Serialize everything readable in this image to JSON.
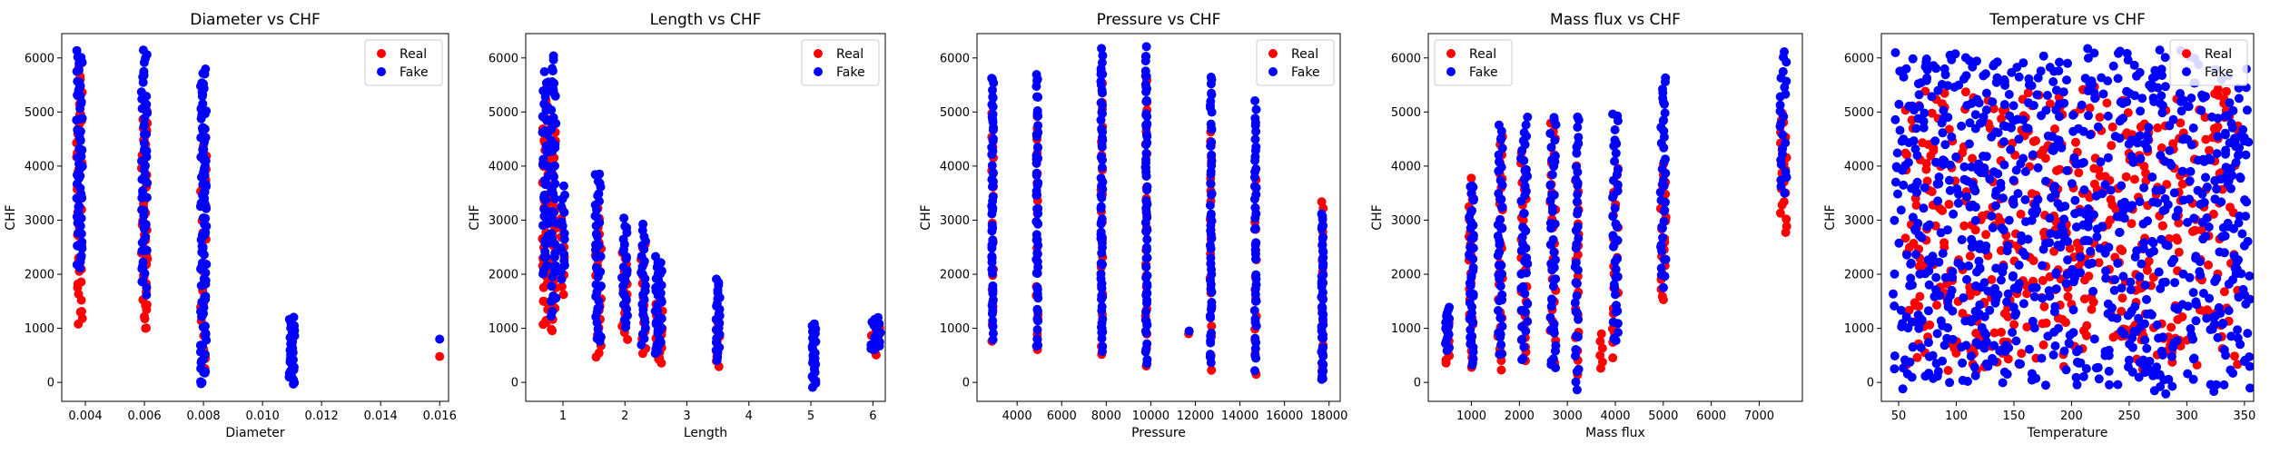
{
  "figure": {
    "real_color": "#ff0000",
    "fake_color": "#0000ff"
  },
  "chart_data": [
    {
      "type": "scatter",
      "title": "Diameter vs CHF",
      "xlabel": "Diameter",
      "ylabel": "CHF",
      "xlim": [
        0.0032,
        0.0163
      ],
      "ylim": [
        -350,
        6450
      ],
      "xticks": [
        0.004,
        0.006,
        0.008,
        0.01,
        0.012,
        0.014,
        0.016
      ],
      "xtick_labels": [
        "0.004",
        "0.006",
        "0.008",
        "0.010",
        "0.012",
        "0.014",
        "0.016"
      ],
      "yticks": [
        0,
        1000,
        2000,
        3000,
        4000,
        5000,
        6000
      ],
      "ytick_labels": [
        "0",
        "1000",
        "2000",
        "3000",
        "4000",
        "5000",
        "6000"
      ],
      "legend": {
        "position": "top-right",
        "entries": [
          "Real",
          "Fake"
        ]
      },
      "series": [
        {
          "name": "Real",
          "color": "#ff0000",
          "clusters": [
            {
              "x": 0.0038,
              "xspread": 0.0001,
              "ymin": 1050,
              "ymax": 5800,
              "n": 45
            },
            {
              "x": 0.006,
              "xspread": 0.0001,
              "ymin": 950,
              "ymax": 5000,
              "n": 45
            },
            {
              "x": 0.008,
              "xspread": 0.0001,
              "ymin": 300,
              "ymax": 4500,
              "n": 25
            },
            {
              "x": 0.016,
              "xspread": 0,
              "ymin": 480,
              "ymax": 480,
              "n": 1
            }
          ]
        },
        {
          "name": "Fake",
          "color": "#0000ff",
          "clusters": [
            {
              "x": 0.0038,
              "xspread": 0.0001,
              "ymin": 2100,
              "ymax": 6100,
              "n": 60
            },
            {
              "x": 0.006,
              "xspread": 0.0001,
              "ymin": 1700,
              "ymax": 6100,
              "n": 60
            },
            {
              "x": 0.008,
              "xspread": 0.0001,
              "ymin": -80,
              "ymax": 5700,
              "n": 110
            },
            {
              "x": 0.011,
              "xspread": 0.0001,
              "ymin": -50,
              "ymax": 1200,
              "n": 30
            },
            {
              "x": 0.016,
              "xspread": 0,
              "ymin": 800,
              "ymax": 800,
              "n": 1
            }
          ]
        }
      ]
    },
    {
      "type": "scatter",
      "title": "Length vs CHF",
      "xlabel": "Length",
      "ylabel": "CHF",
      "xlim": [
        0.4,
        6.2
      ],
      "ylim": [
        -350,
        6450
      ],
      "xticks": [
        1,
        2,
        3,
        4,
        5,
        6
      ],
      "xtick_labels": [
        "1",
        "2",
        "3",
        "4",
        "5",
        "6"
      ],
      "yticks": [
        0,
        1000,
        2000,
        3000,
        4000,
        5000,
        6000
      ],
      "ytick_labels": [
        "0",
        "1000",
        "2000",
        "3000",
        "4000",
        "5000",
        "6000"
      ],
      "legend": {
        "position": "top-right",
        "entries": [
          "Real",
          "Fake"
        ]
      },
      "series": [
        {
          "name": "Real",
          "color": "#ff0000",
          "clusters": [
            {
              "x": 0.72,
              "xspread": 0.05,
              "ymin": 1000,
              "ymax": 5500,
              "n": 40
            },
            {
              "x": 0.85,
              "xspread": 0.04,
              "ymin": 900,
              "ymax": 4800,
              "n": 30
            },
            {
              "x": 1.0,
              "xspread": 0.03,
              "ymin": 1600,
              "ymax": 3200,
              "n": 10
            },
            {
              "x": 1.57,
              "xspread": 0.05,
              "ymin": 420,
              "ymax": 3200,
              "n": 25
            },
            {
              "x": 2.0,
              "xspread": 0.05,
              "ymin": 800,
              "ymax": 2400,
              "n": 15
            },
            {
              "x": 2.3,
              "xspread": 0.04,
              "ymin": 500,
              "ymax": 2600,
              "n": 15
            },
            {
              "x": 2.55,
              "xspread": 0.06,
              "ymin": 350,
              "ymax": 1500,
              "n": 20
            },
            {
              "x": 3.5,
              "xspread": 0.03,
              "ymin": 300,
              "ymax": 1100,
              "n": 10
            },
            {
              "x": 6.05,
              "xspread": 0.08,
              "ymin": 500,
              "ymax": 1000,
              "n": 8
            }
          ]
        },
        {
          "name": "Fake",
          "color": "#0000ff",
          "clusters": [
            {
              "x": 0.72,
              "xspread": 0.05,
              "ymin": 2000,
              "ymax": 5700,
              "n": 45
            },
            {
              "x": 0.85,
              "xspread": 0.04,
              "ymin": 1200,
              "ymax": 6100,
              "n": 45
            },
            {
              "x": 1.0,
              "xspread": 0.03,
              "ymin": 1900,
              "ymax": 3600,
              "n": 15
            },
            {
              "x": 1.57,
              "xspread": 0.05,
              "ymin": 700,
              "ymax": 3900,
              "n": 40
            },
            {
              "x": 2.0,
              "xspread": 0.05,
              "ymin": 1000,
              "ymax": 3000,
              "n": 25
            },
            {
              "x": 2.3,
              "xspread": 0.04,
              "ymin": 700,
              "ymax": 2900,
              "n": 25
            },
            {
              "x": 2.55,
              "xspread": 0.06,
              "ymin": 500,
              "ymax": 2300,
              "n": 35
            },
            {
              "x": 3.5,
              "xspread": 0.03,
              "ymin": 400,
              "ymax": 1900,
              "n": 25
            },
            {
              "x": 5.05,
              "xspread": 0.03,
              "ymin": -80,
              "ymax": 1100,
              "n": 25
            },
            {
              "x": 6.05,
              "xspread": 0.08,
              "ymin": 600,
              "ymax": 1200,
              "n": 20
            }
          ]
        }
      ]
    },
    {
      "type": "scatter",
      "title": "Pressure vs CHF",
      "xlabel": "Pressure",
      "ylabel": "CHF",
      "xlim": [
        2200,
        18500
      ],
      "ylim": [
        -350,
        6450
      ],
      "xticks": [
        4000,
        6000,
        8000,
        10000,
        12000,
        14000,
        16000,
        18000
      ],
      "xtick_labels": [
        "4000",
        "6000",
        "8000",
        "10000",
        "12000",
        "14000",
        "16000",
        "18000"
      ],
      "yticks": [
        0,
        1000,
        2000,
        3000,
        4000,
        5000,
        6000
      ],
      "ytick_labels": [
        "0",
        "1000",
        "2000",
        "3000",
        "4000",
        "5000",
        "6000"
      ],
      "legend": {
        "position": "top-right",
        "entries": [
          "Real",
          "Fake"
        ]
      },
      "series": [
        {
          "name": "Real",
          "color": "#ff0000",
          "clusters": [
            {
              "x": 2900,
              "xspread": 40,
              "ymin": 800,
              "ymax": 5000,
              "n": 20
            },
            {
              "x": 4900,
              "xspread": 40,
              "ymin": 650,
              "ymax": 5000,
              "n": 20
            },
            {
              "x": 7800,
              "xspread": 40,
              "ymin": 500,
              "ymax": 5500,
              "n": 20
            },
            {
              "x": 9800,
              "xspread": 40,
              "ymin": 350,
              "ymax": 5500,
              "n": 20
            },
            {
              "x": 11700,
              "xspread": 30,
              "ymin": 900,
              "ymax": 950,
              "n": 2
            },
            {
              "x": 12700,
              "xspread": 40,
              "ymin": 300,
              "ymax": 4700,
              "n": 20
            },
            {
              "x": 14700,
              "xspread": 40,
              "ymin": 200,
              "ymax": 3800,
              "n": 15
            },
            {
              "x": 17700,
              "xspread": 40,
              "ymin": 300,
              "ymax": 3400,
              "n": 15
            }
          ]
        },
        {
          "name": "Fake",
          "color": "#0000ff",
          "clusters": [
            {
              "x": 2900,
              "xspread": 40,
              "ymin": 800,
              "ymax": 5700,
              "n": 60
            },
            {
              "x": 4900,
              "xspread": 40,
              "ymin": 650,
              "ymax": 5700,
              "n": 60
            },
            {
              "x": 7800,
              "xspread": 40,
              "ymin": 600,
              "ymax": 6100,
              "n": 70
            },
            {
              "x": 9800,
              "xspread": 40,
              "ymin": 400,
              "ymax": 6100,
              "n": 70
            },
            {
              "x": 11700,
              "xspread": 30,
              "ymin": 950,
              "ymax": 950,
              "n": 1
            },
            {
              "x": 12700,
              "xspread": 40,
              "ymin": 300,
              "ymax": 5700,
              "n": 55
            },
            {
              "x": 14700,
              "xspread": 40,
              "ymin": 300,
              "ymax": 5200,
              "n": 45
            },
            {
              "x": 17700,
              "xspread": 40,
              "ymin": 0,
              "ymax": 3100,
              "n": 50
            }
          ]
        }
      ]
    },
    {
      "type": "scatter",
      "title": "Mass flux vs CHF",
      "xlabel": "Mass flux",
      "ylabel": "CHF",
      "xlim": [
        100,
        7900
      ],
      "ylim": [
        -350,
        6450
      ],
      "xticks": [
        1000,
        2000,
        3000,
        4000,
        5000,
        6000,
        7000
      ],
      "xtick_labels": [
        "1000",
        "2000",
        "3000",
        "4000",
        "5000",
        "6000",
        "7000"
      ],
      "yticks": [
        0,
        1000,
        2000,
        3000,
        4000,
        5000,
        6000
      ],
      "ytick_labels": [
        "0",
        "1000",
        "2000",
        "3000",
        "4000",
        "5000",
        "6000"
      ],
      "legend": {
        "position": "top-left",
        "entries": [
          "Real",
          "Fake"
        ]
      },
      "series": [
        {
          "name": "Real",
          "color": "#ff0000",
          "clusters": [
            {
              "x": 500,
              "xspread": 40,
              "ymin": 350,
              "ymax": 1100,
              "n": 12
            },
            {
              "x": 1000,
              "xspread": 50,
              "ymin": 300,
              "ymax": 3800,
              "n": 25
            },
            {
              "x": 1600,
              "xspread": 50,
              "ymin": 300,
              "ymax": 4600,
              "n": 25
            },
            {
              "x": 2100,
              "xspread": 70,
              "ymin": 400,
              "ymax": 4200,
              "n": 25
            },
            {
              "x": 2700,
              "xspread": 60,
              "ymin": 400,
              "ymax": 4800,
              "n": 25
            },
            {
              "x": 3200,
              "xspread": 40,
              "ymin": 200,
              "ymax": 4000,
              "n": 20
            },
            {
              "x": 3700,
              "xspread": 40,
              "ymin": 250,
              "ymax": 900,
              "n": 6
            },
            {
              "x": 4000,
              "xspread": 60,
              "ymin": 500,
              "ymax": 4000,
              "n": 20
            },
            {
              "x": 5000,
              "xspread": 60,
              "ymin": 1500,
              "ymax": 4000,
              "n": 20
            },
            {
              "x": 7500,
              "xspread": 80,
              "ymin": 2800,
              "ymax": 5000,
              "n": 20
            }
          ]
        },
        {
          "name": "Fake",
          "color": "#0000ff",
          "clusters": [
            {
              "x": 500,
              "xspread": 40,
              "ymin": 600,
              "ymax": 1400,
              "n": 15
            },
            {
              "x": 1000,
              "xspread": 50,
              "ymin": 300,
              "ymax": 3700,
              "n": 45
            },
            {
              "x": 1600,
              "xspread": 50,
              "ymin": 500,
              "ymax": 4700,
              "n": 45
            },
            {
              "x": 2100,
              "xspread": 70,
              "ymin": 400,
              "ymax": 4900,
              "n": 45
            },
            {
              "x": 2700,
              "xspread": 60,
              "ymin": 200,
              "ymax": 4900,
              "n": 45
            },
            {
              "x": 3200,
              "xspread": 40,
              "ymin": -100,
              "ymax": 5000,
              "n": 40
            },
            {
              "x": 4000,
              "xspread": 60,
              "ymin": 700,
              "ymax": 5000,
              "n": 40
            },
            {
              "x": 5000,
              "xspread": 60,
              "ymin": 1800,
              "ymax": 5700,
              "n": 40
            },
            {
              "x": 7500,
              "xspread": 80,
              "ymin": 3500,
              "ymax": 6100,
              "n": 25
            }
          ]
        }
      ]
    },
    {
      "type": "scatter",
      "title": "Temperature vs CHF",
      "xlabel": "Temperature",
      "ylabel": "CHF",
      "xlim": [
        35,
        358
      ],
      "ylim": [
        -350,
        6450
      ],
      "xticks": [
        50,
        100,
        150,
        200,
        250,
        300,
        350
      ],
      "xtick_labels": [
        "50",
        "100",
        "150",
        "200",
        "250",
        "300",
        "350"
      ],
      "yticks": [
        0,
        1000,
        2000,
        3000,
        4000,
        5000,
        6000
      ],
      "ytick_labels": [
        "0",
        "1000",
        "2000",
        "3000",
        "4000",
        "5000",
        "6000"
      ],
      "legend": {
        "position": "top-right",
        "entries": [
          "Real",
          "Fake"
        ]
      },
      "series": [
        {
          "name": "Real",
          "color": "#ff0000",
          "clusters": [
            {
              "x": 200,
              "xspread": 145,
              "ymin": 300,
              "ymax": 5400,
              "n": 500
            }
          ]
        },
        {
          "name": "Fake",
          "color": "#0000ff",
          "clusters": [
            {
              "x": 200,
              "xspread": 155,
              "ymin": -100,
              "ymax": 6100,
              "n": 900
            }
          ]
        }
      ]
    }
  ]
}
